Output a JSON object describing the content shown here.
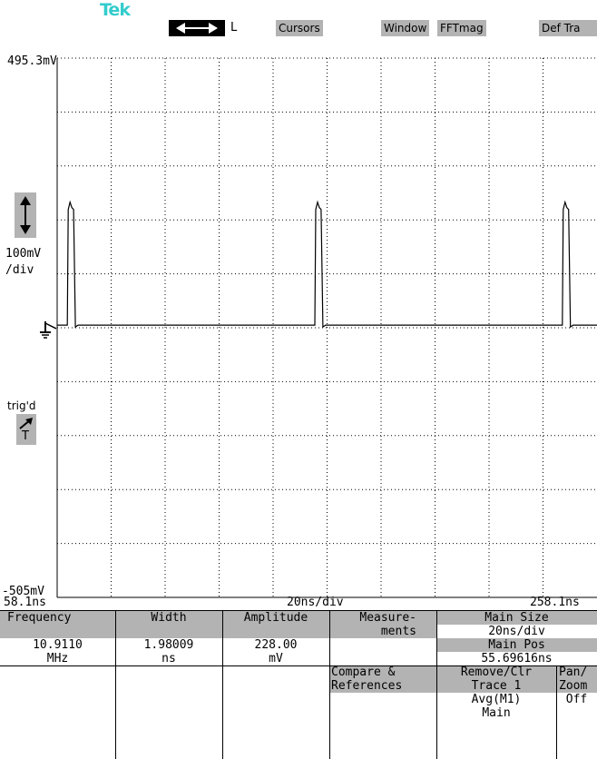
{
  "logo": "Tek",
  "toolbar": {
    "l_label": "L",
    "cursors": "Cursors",
    "window": "Window",
    "fftmag": "FFTmag",
    "deftra": "Def Tra"
  },
  "scope": {
    "y_top": "495.3mV",
    "y_bottom": "-505mV",
    "vdiv_line1": "100mV",
    "vdiv_line2": "/div",
    "trig_label": "trig'd",
    "trig_T": "T",
    "x_left": "58.1ns",
    "x_center": "20ns/div",
    "x_right": "258.1ns"
  },
  "trace": {
    "baseline_mv": 0,
    "pulse_height_mv": 228,
    "pulse_starts_ns": [
      62.2,
      153.9,
      245.6
    ],
    "pulse_width_ns": 1.98
  },
  "table": {
    "freq_label": "Frequency",
    "width_label": "Width",
    "amp_label": "Amplitude",
    "meas_line1": "Measure-",
    "meas_line2": "ments",
    "mainsize_label": "Main Size",
    "mainsize_value": "20ns/div",
    "freq_value": "10.9110",
    "freq_unit": "MHz",
    "width_value": "1.98009",
    "width_unit": "ns",
    "amp_value": "228.00",
    "amp_unit": "mV",
    "mainpos_label": "Main Pos",
    "mainpos_value": "55.69616ns",
    "compare_line1": "Compare &",
    "compare_line2": "References",
    "remove_line1": "Remove/Clr",
    "remove_line2": "Trace 1",
    "remove_line3": "Avg(M1)",
    "remove_line4": "Main",
    "pan_line1": "Pan/",
    "pan_line2": "Zoom",
    "pan_value": "Off"
  }
}
